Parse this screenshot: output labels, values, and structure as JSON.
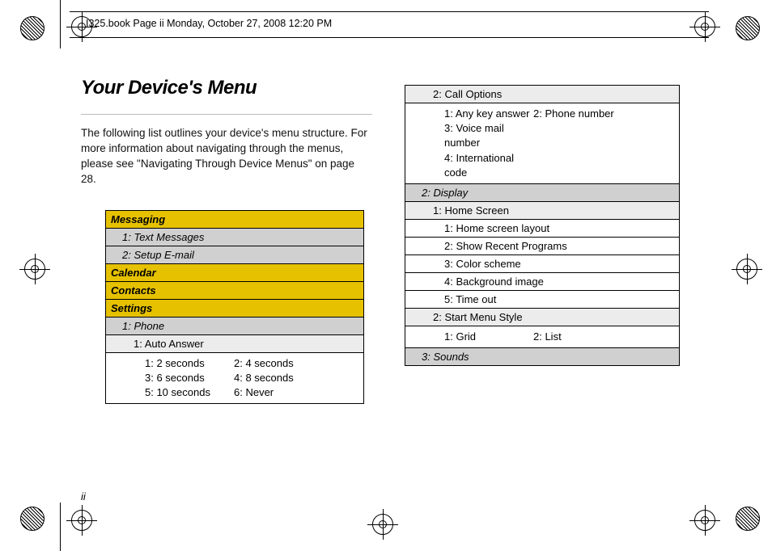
{
  "header": {
    "text": "I325.book  Page ii  Monday, October 27, 2008  12:20 PM"
  },
  "title": "Your Device's Menu",
  "intro": "The following list outlines your device's menu structure. For more information about navigating through the menus, please see \"Navigating Through Device Menus\" on page 28.",
  "page_number": "ii",
  "colors": {
    "lvl0_bg": "#e5c100",
    "lvl1_bg": "#d0d0d0",
    "lvl2_bg": "#ececec",
    "lvl3_bg": "#ffffff",
    "title_color": "#000000",
    "rule_color": "#bbbbbb"
  },
  "left_table": [
    {
      "level": 0,
      "text": "Messaging"
    },
    {
      "level": 1,
      "text": "1: Text Messages"
    },
    {
      "level": 1,
      "text": "2: Setup E-mail"
    },
    {
      "level": 0,
      "text": "Calendar"
    },
    {
      "level": 0,
      "text": "Contacts"
    },
    {
      "level": 0,
      "text": "Settings"
    },
    {
      "level": 1,
      "text": "1: Phone"
    },
    {
      "level": 2,
      "text": "1: Auto Answer"
    },
    {
      "level": "opts",
      "rows": [
        {
          "c1": "1: 2 seconds",
          "c2": "2: 4 seconds"
        },
        {
          "c1": "3: 6 seconds",
          "c2": "4: 8 seconds"
        },
        {
          "c1": "5: 10 seconds",
          "c2": "6: Never"
        }
      ]
    }
  ],
  "right_table": [
    {
      "level": 2,
      "text": "2: Call Options"
    },
    {
      "level": "opts",
      "rows": [
        {
          "c1": "1: Any key answer",
          "c2": "2: Phone number"
        },
        {
          "c1": "3: Voice mail number",
          "c2": ""
        },
        {
          "c1": "4: International code",
          "c2": ""
        }
      ]
    },
    {
      "level": 1,
      "text": "2: Display"
    },
    {
      "level": 2,
      "text": "1: Home Screen"
    },
    {
      "level": 3,
      "text": "1: Home screen layout"
    },
    {
      "level": 3,
      "text": "2: Show Recent Programs"
    },
    {
      "level": 3,
      "text": "3: Color scheme"
    },
    {
      "level": 3,
      "text": "4: Background image"
    },
    {
      "level": 3,
      "text": "5: Time out"
    },
    {
      "level": 2,
      "text": "2: Start Menu Style"
    },
    {
      "level": "opts",
      "rows": [
        {
          "c1": "1: Grid",
          "c2": "2: List"
        }
      ]
    },
    {
      "level": 1,
      "text": "3: Sounds"
    }
  ]
}
